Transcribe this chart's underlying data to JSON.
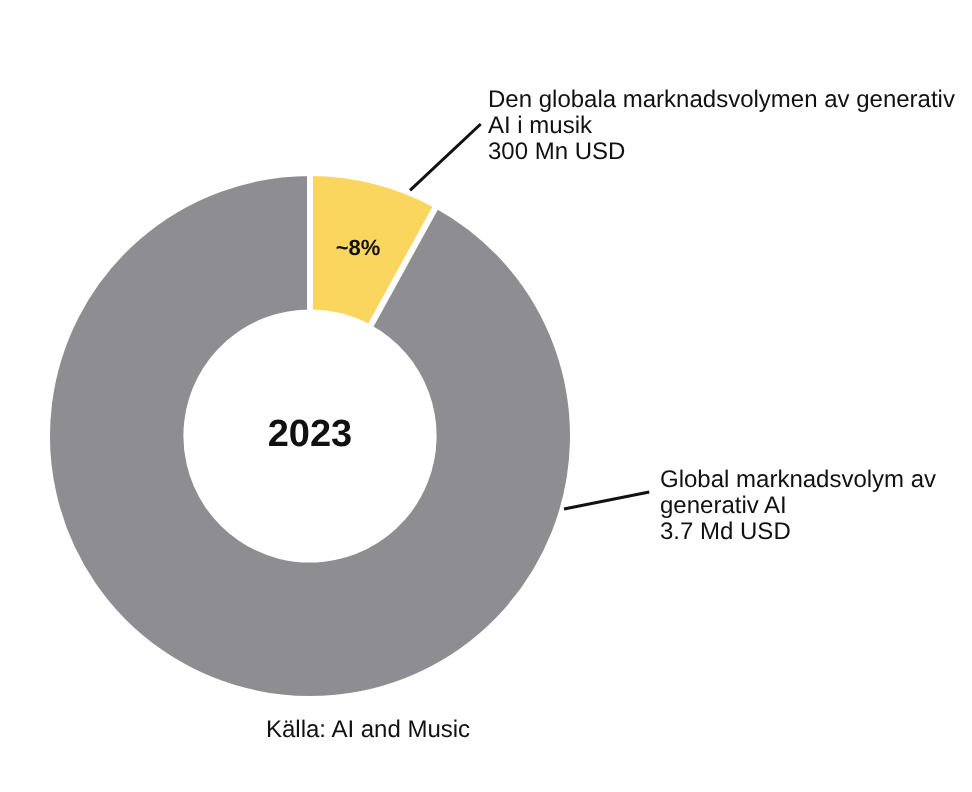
{
  "chart_data": {
    "type": "donut",
    "title": "2023",
    "categories": [
      "Den globala marknadsvolymen av generativ\nAI i musik\n300 Mn USD",
      "Global marknadsvolym av\ngenerativ AI\n3.7 Md USD"
    ],
    "values": [
      8,
      92
    ],
    "value_labels": [
      "~8%",
      null
    ],
    "colors": [
      "#fad65f",
      "#8e8d91"
    ],
    "annotations": [
      "Källa: AI and Music"
    ],
    "legend": false
  }
}
